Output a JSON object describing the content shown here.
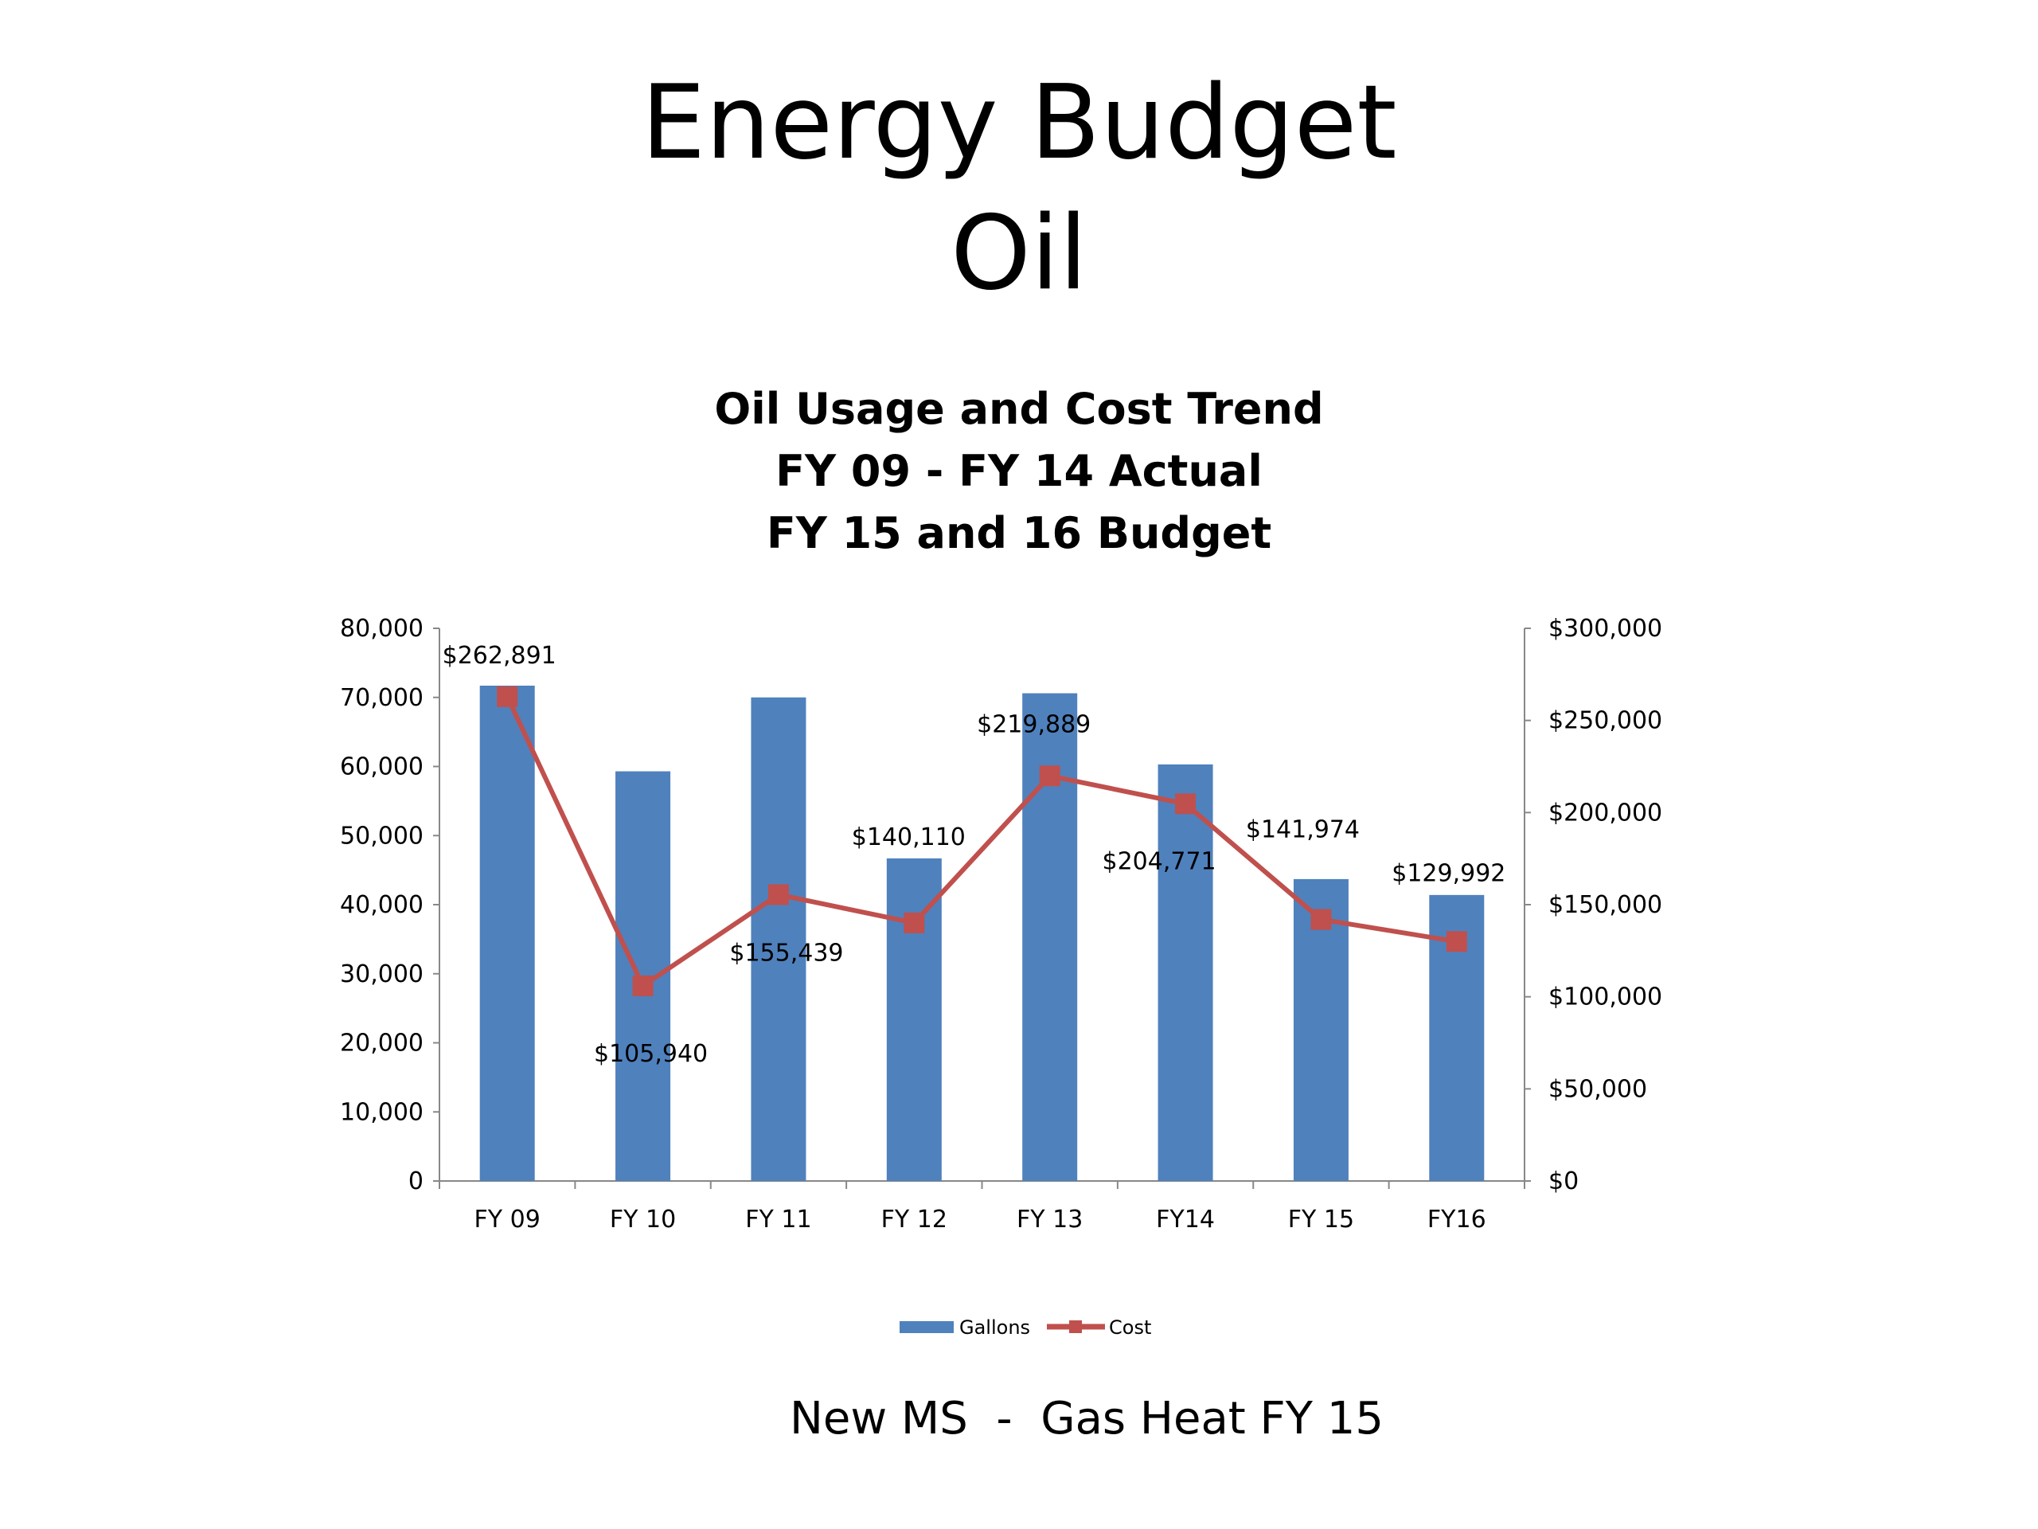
{
  "slide": {
    "title_line1": "Energy Budget",
    "title_line2": "Oil",
    "footer": "New MS  -  Gas Heat FY 15"
  },
  "chart_data": {
    "type": "bar",
    "title_lines": [
      "Oil Usage and Cost Trend",
      "FY 09 - FY 14 Actual",
      "FY 15 and 16 Budget"
    ],
    "categories": [
      "FY 09",
      "FY 10",
      "FY 11",
      "FY 12",
      "FY 13",
      "FY14",
      "FY 15",
      "FY16"
    ],
    "series": [
      {
        "name": "Gallons",
        "type": "bar",
        "axis": "left",
        "color": "#4F81BD",
        "values": [
          71700,
          59300,
          70000,
          46700,
          70600,
          60300,
          43700,
          41400
        ]
      },
      {
        "name": "Cost",
        "type": "line",
        "axis": "right",
        "color": "#C0504D",
        "marker": "square",
        "values": [
          262891,
          105940,
          155439,
          140110,
          219889,
          204771,
          141974,
          129992
        ],
        "data_labels": [
          "$262,891",
          "$105,940",
          "$155,439",
          "$140,110",
          "$219,889",
          "$204,771",
          "$141,974",
          "$129,992"
        ]
      }
    ],
    "y_left": {
      "range": [
        0,
        80000
      ],
      "ticks": [
        "0",
        "10,000",
        "20,000",
        "30,000",
        "40,000",
        "50,000",
        "60,000",
        "70,000",
        "80,000"
      ]
    },
    "y_right": {
      "range": [
        0,
        300000
      ],
      "ticks": [
        "$0",
        "$50,000",
        "$100,000",
        "$150,000",
        "$200,000",
        "$250,000",
        "$300,000"
      ]
    },
    "grid": false,
    "legend": "bottom"
  }
}
